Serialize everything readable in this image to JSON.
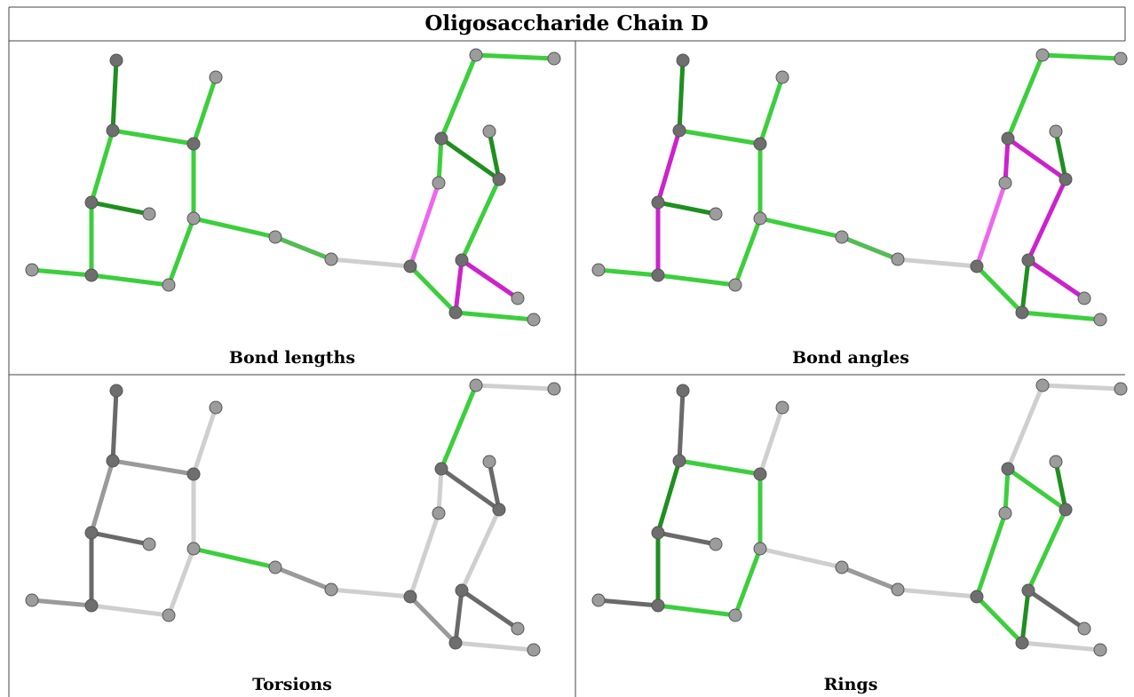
{
  "title": "Oligosaccharide Chain D",
  "panels": [
    {
      "caption": "Bond lengths"
    },
    {
      "caption": "Bond angles"
    },
    {
      "caption": "Torsions"
    },
    {
      "caption": "Rings"
    }
  ]
}
